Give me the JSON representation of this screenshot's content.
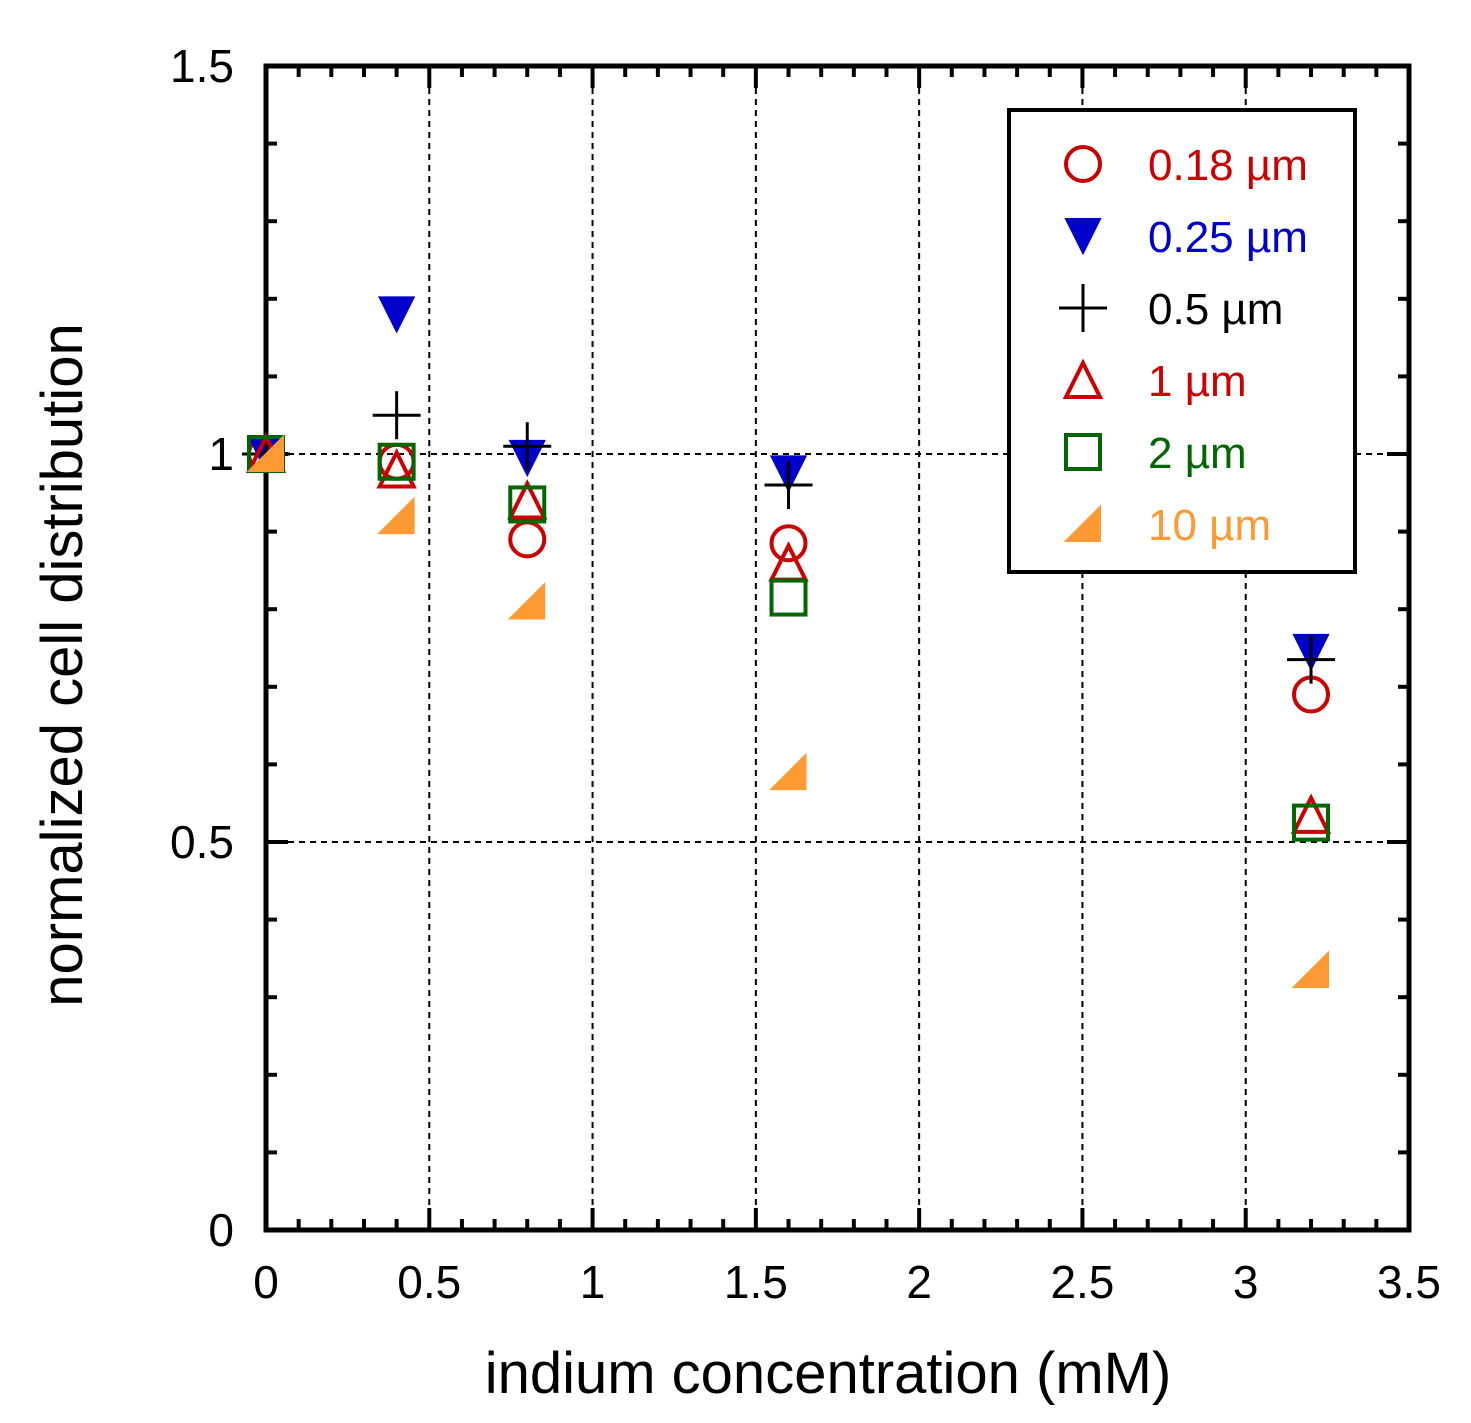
{
  "chart_data": {
    "type": "scatter",
    "xlabel": "indium concentration (mM)",
    "ylabel": "normalized cell distribution",
    "xlim": [
      0,
      3.5
    ],
    "ylim": [
      0,
      1.5
    ],
    "xticks": [
      "0",
      "0.5",
      "1",
      "1.5",
      "2",
      "2.5",
      "3",
      "3.5"
    ],
    "yticks": [
      "0",
      "0.5",
      "1",
      "1.5"
    ],
    "grid": true,
    "legend_position": "top-right",
    "series": [
      {
        "name": "0.18 µm",
        "marker": "circle-open",
        "color": "#cc0000",
        "x": [
          0,
          0.4,
          0.8,
          1.6,
          3.2
        ],
        "y": [
          1.0,
          0.99,
          0.89,
          0.885,
          0.69
        ]
      },
      {
        "name": "0.25 µm",
        "marker": "triangle-down-filled",
        "color": "#0000cc",
        "x": [
          0,
          0.4,
          0.8,
          1.6,
          3.2
        ],
        "y": [
          1.0,
          1.18,
          0.995,
          0.975,
          0.745
        ]
      },
      {
        "name": "0.5 µm",
        "marker": "plus",
        "color": "#000000",
        "x": [
          0,
          0.4,
          0.8,
          1.6,
          3.2
        ],
        "y": [
          1.0,
          1.05,
          1.01,
          0.96,
          0.735
        ]
      },
      {
        "name": "1 µm",
        "marker": "triangle-up-open",
        "color": "#cc0000",
        "x": [
          0,
          0.4,
          0.8,
          1.6,
          3.2
        ],
        "y": [
          1.0,
          0.98,
          0.94,
          0.86,
          0.535
        ]
      },
      {
        "name": "2 µm",
        "marker": "square-open",
        "color": "#006600",
        "x": [
          0,
          0.4,
          0.8,
          1.6,
          3.2
        ],
        "y": [
          1.0,
          0.99,
          0.935,
          0.815,
          0.525
        ]
      },
      {
        "name": "10 µm",
        "marker": "half-triangle-filled",
        "color": "#ff9933",
        "x": [
          0,
          0.4,
          0.8,
          1.6,
          3.2
        ],
        "y": [
          1.0,
          0.92,
          0.81,
          0.59,
          0.335
        ]
      }
    ]
  }
}
